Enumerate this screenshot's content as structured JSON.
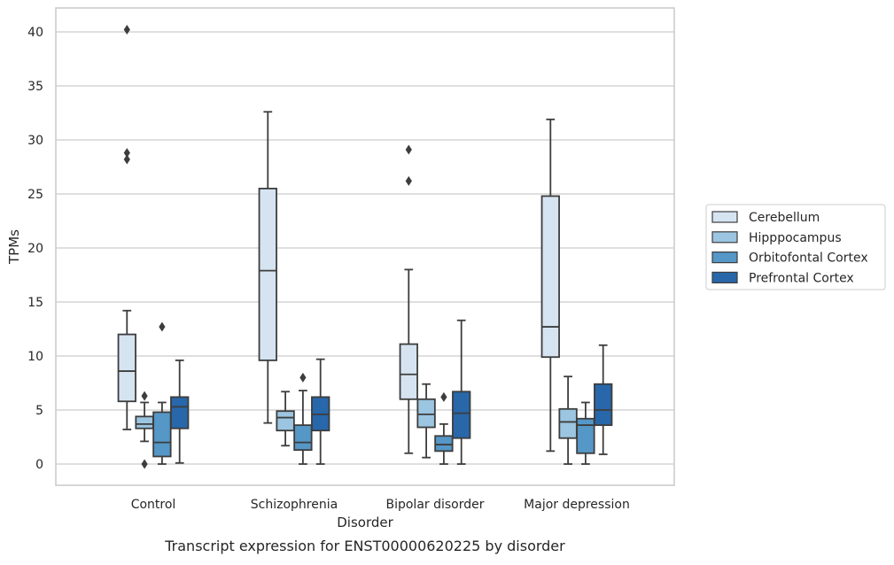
{
  "chart_data": {
    "type": "box",
    "title": "",
    "caption": "Transcript expression for ENST00000620225 by disorder",
    "xlabel": "Disorder",
    "ylabel": "TPMs",
    "ylim": [
      -1.9,
      42
    ],
    "yticks": [
      0,
      5,
      10,
      15,
      20,
      25,
      30,
      35,
      40
    ],
    "grid": "horizontal",
    "legend_position": "right",
    "categories": [
      "Control",
      "Schizophrenia",
      "Bipolar disorder",
      "Major depression"
    ],
    "series": [
      {
        "name": "Cerebellum",
        "color": "#d6e4f2",
        "boxes": [
          {
            "whisker_low": 3.2,
            "q1": 5.8,
            "median": 8.6,
            "q3": 12.0,
            "whisker_high": 14.2,
            "outliers": [
              28.2,
              28.8,
              40.2
            ]
          },
          {
            "whisker_low": 3.8,
            "q1": 9.6,
            "median": 17.9,
            "q3": 25.5,
            "whisker_high": 32.6,
            "outliers": []
          },
          {
            "whisker_low": 1.0,
            "q1": 6.0,
            "median": 8.3,
            "q3": 11.1,
            "whisker_high": 18.0,
            "outliers": [
              26.2,
              29.1
            ]
          },
          {
            "whisker_low": 1.2,
            "q1": 9.9,
            "median": 12.7,
            "q3": 24.8,
            "whisker_high": 31.9,
            "outliers": []
          }
        ]
      },
      {
        "name": "Hipppocampus",
        "color": "#9bc5e0",
        "boxes": [
          {
            "whisker_low": 2.1,
            "q1": 3.3,
            "median": 3.7,
            "q3": 4.4,
            "whisker_high": 5.7,
            "outliers": [
              0.0,
              6.3
            ]
          },
          {
            "whisker_low": 1.7,
            "q1": 3.1,
            "median": 4.3,
            "q3": 4.9,
            "whisker_high": 6.7,
            "outliers": []
          },
          {
            "whisker_low": 0.6,
            "q1": 3.4,
            "median": 4.6,
            "q3": 6.0,
            "whisker_high": 7.4,
            "outliers": []
          },
          {
            "whisker_low": 0.0,
            "q1": 2.4,
            "median": 3.9,
            "q3": 5.1,
            "whisker_high": 8.1,
            "outliers": []
          }
        ]
      },
      {
        "name": "Orbitofontal Cortex",
        "color": "#5597c6",
        "boxes": [
          {
            "whisker_low": 0.0,
            "q1": 0.7,
            "median": 2.0,
            "q3": 4.8,
            "whisker_high": 5.7,
            "outliers": [
              12.7
            ]
          },
          {
            "whisker_low": 0.0,
            "q1": 1.3,
            "median": 2.0,
            "q3": 3.6,
            "whisker_high": 6.8,
            "outliers": [
              8.0
            ]
          },
          {
            "whisker_low": 0.0,
            "q1": 1.2,
            "median": 1.8,
            "q3": 2.6,
            "whisker_high": 3.7,
            "outliers": [
              6.2
            ]
          },
          {
            "whisker_low": 0.0,
            "q1": 1.0,
            "median": 3.6,
            "q3": 4.2,
            "whisker_high": 5.7,
            "outliers": []
          }
        ]
      },
      {
        "name": "Prefrontal Cortex",
        "color": "#2867a9",
        "boxes": [
          {
            "whisker_low": 0.1,
            "q1": 3.3,
            "median": 5.3,
            "q3": 6.2,
            "whisker_high": 9.6,
            "outliers": []
          },
          {
            "whisker_low": 0.0,
            "q1": 3.1,
            "median": 4.6,
            "q3": 6.2,
            "whisker_high": 9.7,
            "outliers": []
          },
          {
            "whisker_low": 0.0,
            "q1": 2.4,
            "median": 4.7,
            "q3": 6.7,
            "whisker_high": 13.3,
            "outliers": []
          },
          {
            "whisker_low": 0.9,
            "q1": 3.6,
            "median": 5.0,
            "q3": 7.4,
            "whisker_high": 11.0,
            "outliers": []
          }
        ]
      }
    ]
  }
}
